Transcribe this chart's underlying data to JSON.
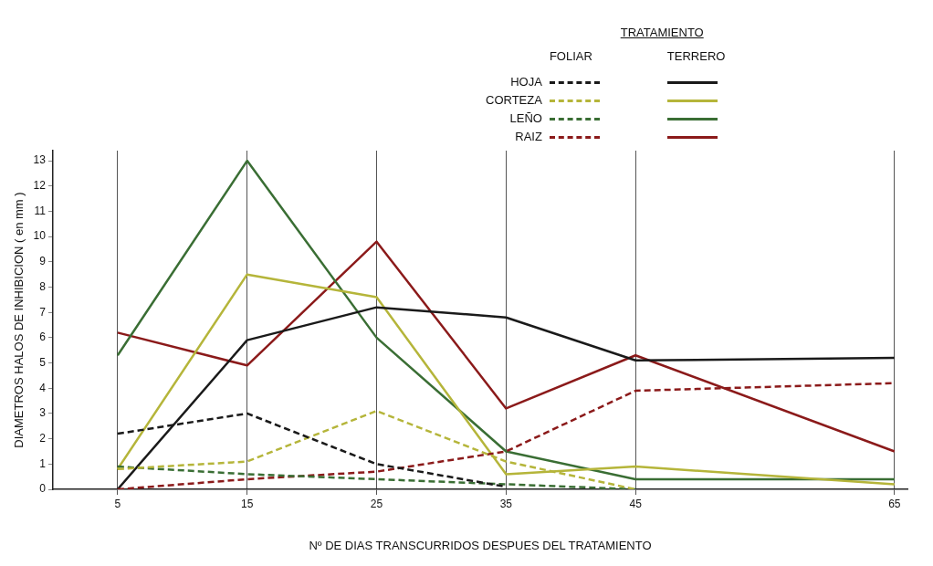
{
  "chart_data": {
    "type": "line",
    "legend_title": "TRATAMIENTO",
    "annotations": [
      "FOLIAR",
      "TERRERO"
    ],
    "xlabel": "Nº DE DIAS TRANSCURRIDOS DESPUES DEL TRATAMIENTO",
    "ylabel": "DIAMETROS HALOS DE INHIBICION ( en mm )",
    "x": [
      5,
      15,
      25,
      35,
      45,
      65
    ],
    "xlim": [
      0,
      66
    ],
    "xticks": [
      5,
      15,
      25,
      35,
      45,
      65
    ],
    "ylim": [
      0,
      13.4
    ],
    "yticks": [
      0,
      1,
      2,
      3,
      4,
      5,
      6,
      7,
      8,
      9,
      10,
      11,
      12,
      13
    ],
    "grid": "x",
    "legend": "top right",
    "marker": "none",
    "series": [
      {
        "name": "HOJA",
        "color": "#1a1a1a",
        "line_style": "dashed",
        "values": [
          2.2,
          3.0,
          1.0,
          0.1,
          null,
          null
        ]
      },
      {
        "name": "CORTEZA",
        "color": "#b5b53a",
        "line_style": "dashed",
        "values": [
          0.8,
          1.1,
          3.1,
          1.1,
          0,
          null
        ]
      },
      {
        "name": "LEÑO",
        "color": "#3a6e34",
        "line_style": "dashed",
        "values": [
          0.9,
          0.6,
          0.4,
          0.2,
          0,
          null
        ]
      },
      {
        "name": "RAIZ",
        "color": "#8b1a1a",
        "line_style": "dashed",
        "values": [
          0,
          0.4,
          0.7,
          1.5,
          3.9,
          4.2
        ]
      },
      {
        "color": "#1a1a1a",
        "line_style": "solid",
        "values": [
          0,
          5.9,
          7.2,
          6.8,
          5.1,
          5.2
        ]
      },
      {
        "color": "#b5b53a",
        "line_style": "solid",
        "values": [
          0.8,
          8.5,
          7.6,
          0.6,
          0.9,
          0.2
        ]
      },
      {
        "color": "#3a6e34",
        "line_style": "solid",
        "values": [
          5.3,
          13.0,
          6.0,
          1.5,
          0.4,
          0.4
        ]
      },
      {
        "color": "#8b1a1a",
        "line_style": "solid",
        "values": [
          6.2,
          4.9,
          9.8,
          3.2,
          5.3,
          1.5
        ]
      }
    ]
  }
}
